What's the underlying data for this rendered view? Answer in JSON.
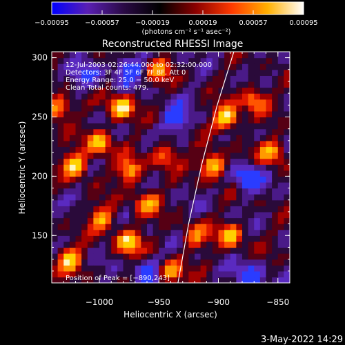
{
  "chart_data": {
    "type": "heatmap",
    "title": "Reconstructed RHESSI Image",
    "xlabel": "Heliocentric X (arcsec)",
    "ylabel": "Heliocentric Y (arcsec)",
    "xlim": [
      -1040,
      -840
    ],
    "ylim": [
      110,
      305
    ],
    "x_ticks": [
      -1000,
      -950,
      -900,
      -850
    ],
    "x_tick_labels": [
      "−1000",
      "−950",
      "−900",
      "−850"
    ],
    "y_ticks": [
      150,
      200,
      250,
      300
    ],
    "y_tick_labels": [
      "150",
      "200",
      "250",
      "300"
    ],
    "colorbar": {
      "range": [
        -0.00095,
        0.00095
      ],
      "tick_values": [
        -0.00095,
        -0.00057,
        -0.00019,
        0.00019,
        0.00057,
        0.00095
      ],
      "tick_labels": [
        "−0.00095",
        "−0.00057",
        "−0.00019",
        "0.00019",
        "0.00057",
        "0.00095"
      ],
      "units_label": "(photons cm⁻² s⁻¹ asec⁻²)",
      "colors": [
        "#0000ff",
        "#5a1fb3",
        "#2a0a45",
        "#000000",
        "#8a0000",
        "#ff3a00",
        "#ffb000",
        "#ffffff"
      ]
    },
    "annotations": [
      "12-Jul-2003 02:26:44.000 to 02:32:00.000",
      "Detectors: 3F 4F 5F 6F 7F 8F, Att 0",
      "Energy Range: 25.0 − 50.0 keV",
      "Clean    Total counts: 479.",
      "Position of Peak = [−890,243]"
    ],
    "limb_curve": [
      [
        -934,
        110
      ],
      [
        -925,
        160
      ],
      [
        -914,
        210
      ],
      [
        -901,
        260
      ],
      [
        -887,
        305
      ]
    ],
    "hot_spots": [
      {
        "x": -1035,
        "y": 258,
        "level": 0.8
      },
      {
        "x": -1020,
        "y": 210,
        "level": 0.9
      },
      {
        "x": -1000,
        "y": 228,
        "level": 0.8
      },
      {
        "x": -982,
        "y": 258,
        "level": 0.95
      },
      {
        "x": -975,
        "y": 205,
        "level": 0.75
      },
      {
        "x": -960,
        "y": 178,
        "level": 0.7
      },
      {
        "x": -998,
        "y": 165,
        "level": 0.7
      },
      {
        "x": -975,
        "y": 145,
        "level": 0.9
      },
      {
        "x": -945,
        "y": 218,
        "level": 0.6
      },
      {
        "x": -893,
        "y": 250,
        "level": 1.0
      },
      {
        "x": -905,
        "y": 210,
        "level": 0.95
      },
      {
        "x": -920,
        "y": 150,
        "level": 0.6
      },
      {
        "x": -890,
        "y": 150,
        "level": 0.8
      },
      {
        "x": -855,
        "y": 220,
        "level": 0.75
      },
      {
        "x": -870,
        "y": 265,
        "level": 0.7
      },
      {
        "x": -950,
        "y": 290,
        "level": 0.6
      },
      {
        "x": -1025,
        "y": 130,
        "level": 0.8
      },
      {
        "x": -940,
        "y": 120,
        "level": 0.7
      }
    ],
    "cold_spots": [
      {
        "x": -975,
        "y": 290,
        "level": -0.7
      },
      {
        "x": -935,
        "y": 250,
        "level": -0.6
      },
      {
        "x": -875,
        "y": 200,
        "level": -0.8
      },
      {
        "x": -875,
        "y": 115,
        "level": -0.7
      },
      {
        "x": -1010,
        "y": 285,
        "level": -0.5
      },
      {
        "x": -960,
        "y": 120,
        "level": -0.6
      }
    ]
  },
  "footer": {
    "date_stamp": "3-May-2022 14:29"
  }
}
